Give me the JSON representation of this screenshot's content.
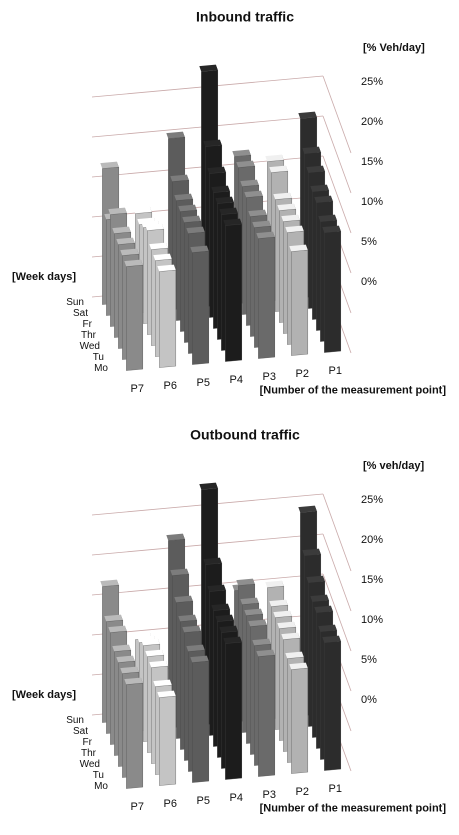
{
  "chart_data": [
    {
      "type": "bar3d",
      "title": "Inbound traffic",
      "y_label": "[% Veh/day]",
      "x_label": "[Number of the measurement point]",
      "z_label": "[Week days]",
      "days": [
        "Mo",
        "Tu",
        "Wed",
        "Thr",
        "Fr",
        "Sat",
        "Sun"
      ],
      "ylim": [
        0,
        27
      ],
      "yticks": [
        {
          "value": 0,
          "label": "0%"
        },
        {
          "value": 5,
          "label": "5%"
        },
        {
          "value": 10,
          "label": "10%"
        },
        {
          "value": 15,
          "label": "15%"
        },
        {
          "value": 20,
          "label": "20%"
        },
        {
          "value": 25,
          "label": "25%"
        }
      ],
      "grid": true,
      "series": [
        {
          "name": "P7",
          "color": "#8a8a8a",
          "values": [
            13,
            13,
            13,
            13,
            14,
            12,
            17
          ]
        },
        {
          "name": "P6",
          "color": "#c4c4c4",
          "values": [
            12,
            12,
            12,
            13,
            12,
            11,
            11
          ]
        },
        {
          "name": "P5",
          "color": "#5c5c5c",
          "values": [
            14,
            15,
            15,
            15,
            15,
            16,
            20
          ]
        },
        {
          "name": "P4",
          "color": "#1c1c1c",
          "values": [
            17,
            17,
            17,
            17,
            18,
            20,
            28
          ]
        },
        {
          "name": "P3",
          "color": "#6a6a6a",
          "values": [
            15,
            15,
            15,
            16,
            16,
            17,
            17
          ]
        },
        {
          "name": "P2",
          "color": "#b2b2b2",
          "values": [
            13,
            14,
            14,
            14,
            14,
            16,
            16
          ]
        },
        {
          "name": "P1",
          "color": "#2c2c2c",
          "values": [
            15,
            15,
            16,
            16,
            17,
            18,
            21
          ]
        }
      ]
    },
    {
      "type": "bar3d",
      "title": "Outbound traffic",
      "y_label": "[% veh/day]",
      "x_label": "[Number of the measurement point]",
      "z_label": "[Week days]",
      "days": [
        "Mo",
        "Tu",
        "Wed",
        "Thr",
        "Fr",
        "Sat",
        "Sun"
      ],
      "ylim": [
        0,
        27
      ],
      "yticks": [
        {
          "value": 0,
          "label": "0%"
        },
        {
          "value": 5,
          "label": "5%"
        },
        {
          "value": 10,
          "label": "10%"
        },
        {
          "value": 15,
          "label": "15%"
        },
        {
          "value": 20,
          "label": "20%"
        },
        {
          "value": 25,
          "label": "25%"
        }
      ],
      "grid": true,
      "series": [
        {
          "name": "P7",
          "color": "#8a8a8a",
          "values": [
            13,
            13,
            13,
            13,
            14,
            14,
            17
          ]
        },
        {
          "name": "P6",
          "color": "#c4c4c4",
          "values": [
            11,
            11,
            12,
            12,
            12,
            11,
            10
          ]
        },
        {
          "name": "P5",
          "color": "#5c5c5c",
          "values": [
            15,
            15,
            16,
            16,
            17,
            19,
            22
          ]
        },
        {
          "name": "P4",
          "color": "#1c1c1c",
          "values": [
            17,
            17,
            17,
            17,
            18,
            20,
            28
          ]
        },
        {
          "name": "P3",
          "color": "#6a6a6a",
          "values": [
            15,
            15,
            16,
            16,
            16,
            17,
            15
          ]
        },
        {
          "name": "P2",
          "color": "#b2b2b2",
          "values": [
            13,
            13,
            14,
            14,
            14,
            14,
            15
          ]
        },
        {
          "name": "P1",
          "color": "#2c2c2c",
          "values": [
            16,
            16,
            17,
            17,
            18,
            20,
            24
          ]
        }
      ]
    }
  ]
}
